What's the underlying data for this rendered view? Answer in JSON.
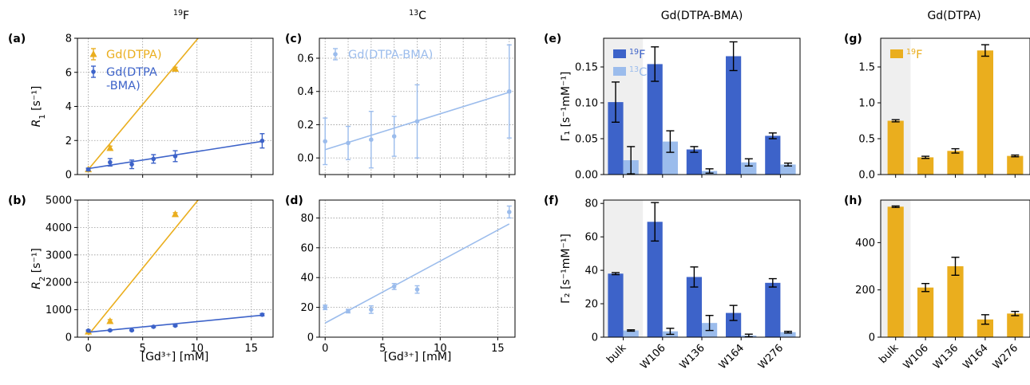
{
  "colors": {
    "dtpa": "#eaae1e",
    "bma": "#3d63c9",
    "c13": "#9bbcec",
    "bulk_bg": "#efefef",
    "grid": "#999999"
  },
  "column_titles": [
    {
      "sup": "19",
      "text": "F"
    },
    {
      "sup": "13",
      "text": "C"
    },
    {
      "text": "Gd(DTPA-BMA)"
    },
    {
      "text": "Gd(DTPA)"
    }
  ],
  "x_label_conc": "[Gd³⁺] [mM]",
  "chart_data": [
    {
      "panel": "(a)",
      "type": "scatter",
      "ylabel": "R₁ [s⁻¹]",
      "xlim": [
        -1,
        17
      ],
      "ylim": [
        0,
        8
      ],
      "yticks": [
        0,
        2,
        4,
        6,
        8
      ],
      "xticks": [
        0,
        5,
        10,
        15
      ],
      "grid": true,
      "legend": "top-left",
      "series": [
        {
          "name": "Gd(DTPA)",
          "color": "dtpa",
          "marker": "triangle",
          "x": [
            0,
            2,
            8
          ],
          "y": [
            0.3,
            1.55,
            6.2
          ],
          "err": [
            0.05,
            0.12,
            0.1
          ],
          "fit": [
            [
              0,
              0.3
            ],
            [
              10.1,
              8
            ]
          ]
        },
        {
          "name": "Gd(DTPA\n-BMA)",
          "color": "bma",
          "marker": "circle",
          "x": [
            0,
            2,
            4,
            6,
            8,
            16
          ],
          "y": [
            0.3,
            0.72,
            0.6,
            0.92,
            1.08,
            1.98
          ],
          "err": [
            0.08,
            0.22,
            0.25,
            0.25,
            0.32,
            0.42
          ],
          "fit": [
            [
              0,
              0.35
            ],
            [
              16,
              1.95
            ]
          ]
        }
      ]
    },
    {
      "panel": "(b)",
      "type": "scatter",
      "ylabel": "R₂ [s⁻¹]",
      "xlim": [
        -1,
        17
      ],
      "ylim": [
        0,
        5000
      ],
      "yticks": [
        0,
        1000,
        2000,
        3000,
        4000,
        5000
      ],
      "xticks": [
        0,
        5,
        10,
        15
      ],
      "xticklabels": [
        "0",
        "5",
        "10",
        "15"
      ],
      "grid": true,
      "series": [
        {
          "name": "",
          "color": "dtpa",
          "marker": "triangle",
          "x": [
            0,
            2,
            8
          ],
          "y": [
            200,
            580,
            4480
          ],
          "err": [
            30,
            60,
            60
          ],
          "fit": [
            [
              0,
              80
            ],
            [
              10.1,
              5000
            ]
          ]
        },
        {
          "name": "",
          "color": "bma",
          "marker": "circle",
          "x": [
            0,
            2,
            4,
            6,
            8,
            16
          ],
          "y": [
            240,
            250,
            250,
            380,
            420,
            820
          ],
          "err": [
            25,
            20,
            20,
            25,
            25,
            40
          ],
          "fit": [
            [
              0,
              180
            ],
            [
              16,
              800
            ]
          ]
        }
      ]
    },
    {
      "panel": "(c)",
      "type": "scatter",
      "ylabel": "",
      "xlim": [
        -0.5,
        16.5
      ],
      "ylim": [
        -0.1,
        0.72
      ],
      "yticks": [
        0.0,
        0.2,
        0.4,
        0.6
      ],
      "xticks": [
        0,
        2,
        4,
        6,
        8,
        10,
        12,
        14,
        16
      ],
      "grid": true,
      "legend": "top-left",
      "series": [
        {
          "name": "Gd(DTPA-BMA)",
          "color": "c13",
          "marker": "circle",
          "x": [
            0,
            2,
            4,
            6,
            8,
            16
          ],
          "y": [
            0.1,
            0.09,
            0.11,
            0.13,
            0.22,
            0.4
          ],
          "err": [
            0.14,
            0.1,
            0.17,
            0.12,
            0.22,
            0.28
          ],
          "fit": [
            [
              0,
              0.05
            ],
            [
              16,
              0.395
            ]
          ]
        }
      ]
    },
    {
      "panel": "(d)",
      "type": "scatter",
      "ylabel": "",
      "xlim": [
        -0.5,
        16.5
      ],
      "ylim": [
        0,
        92
      ],
      "yticks": [
        0,
        20,
        40,
        60,
        80
      ],
      "xticks": [
        0,
        5,
        10,
        15
      ],
      "xticklabels": [
        "0",
        "5",
        "10",
        "15"
      ],
      "grid": true,
      "series": [
        {
          "name": "",
          "color": "c13",
          "marker": "circle",
          "x": [
            0,
            2,
            4,
            6,
            8,
            16
          ],
          "y": [
            20,
            17.5,
            18.5,
            34,
            32,
            84
          ],
          "err": [
            1.5,
            1.2,
            2.5,
            2,
            2.5,
            4
          ],
          "fit": [
            [
              0,
              9.5
            ],
            [
              16,
              76
            ]
          ]
        }
      ]
    },
    {
      "panel": "(e)",
      "type": "bar",
      "ylabel": "Γ₁ [s⁻¹mM⁻¹]",
      "categories": [
        "bulk",
        "W106",
        "W136",
        "W164",
        "W276"
      ],
      "ylim": [
        0,
        0.19
      ],
      "yticks": [
        0.0,
        0.05,
        0.1,
        0.15
      ],
      "yticklabels": [
        "0.00",
        "0.05",
        "0.10",
        "0.15"
      ],
      "legend": "top-left",
      "series": [
        {
          "name": "19F",
          "color": "bma",
          "values": [
            0.101,
            0.154,
            0.035,
            0.165,
            0.054
          ],
          "err": [
            0.028,
            0.024,
            0.004,
            0.02,
            0.004
          ]
        },
        {
          "name": "13C",
          "color": "c13",
          "values": [
            0.02,
            0.046,
            0.005,
            0.017,
            0.014
          ],
          "err": [
            0.019,
            0.015,
            0.003,
            0.005,
            0.002
          ]
        }
      ]
    },
    {
      "panel": "(f)",
      "type": "bar",
      "ylabel": "Γ₂ [s⁻¹mM⁻¹]",
      "categories": [
        "bulk",
        "W106",
        "W136",
        "W164",
        "W276"
      ],
      "ylim": [
        0,
        82
      ],
      "yticks": [
        0,
        20,
        40,
        60,
        80
      ],
      "series": [
        {
          "name": "",
          "color": "bma",
          "values": [
            38,
            69,
            36,
            14.5,
            32.5
          ],
          "err": [
            0.6,
            11.5,
            6,
            4.5,
            2.5
          ]
        },
        {
          "name": "",
          "color": "c13",
          "values": [
            4,
            3.5,
            8.5,
            1,
            3
          ],
          "err": [
            0.4,
            1.8,
            4.5,
            0.8,
            0.5
          ]
        }
      ]
    },
    {
      "panel": "(g)",
      "type": "bar",
      "ylabel": "",
      "categories": [
        "bulk",
        "W106",
        "W136",
        "W164",
        "W276"
      ],
      "ylim": [
        0,
        1.9
      ],
      "yticks": [
        0.0,
        0.5,
        1.0,
        1.5
      ],
      "yticklabels": [
        "0.0",
        "0.5",
        "1.0",
        "1.5"
      ],
      "legend": "top-left",
      "series": [
        {
          "name": "19F",
          "color": "dtpa",
          "values": [
            0.75,
            0.24,
            0.33,
            1.73,
            0.26
          ],
          "err": [
            0.015,
            0.015,
            0.03,
            0.08,
            0.012
          ]
        }
      ]
    },
    {
      "panel": "(h)",
      "type": "bar",
      "ylabel": "",
      "categories": [
        "bulk",
        "W106",
        "W136",
        "W164",
        "W276"
      ],
      "ylim": [
        0,
        580
      ],
      "yticks": [
        0,
        200,
        400
      ],
      "series": [
        {
          "name": "",
          "color": "dtpa",
          "values": [
            552,
            210,
            300,
            75,
            100
          ],
          "err": [
            3,
            17,
            38,
            20,
            9
          ]
        }
      ]
    }
  ]
}
